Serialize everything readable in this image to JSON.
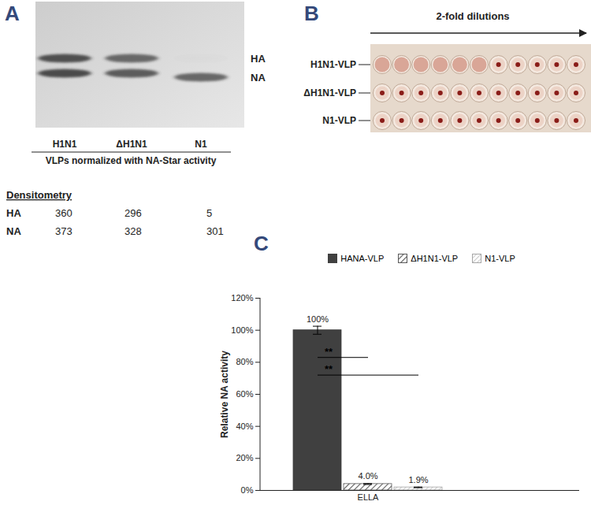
{
  "panel_a": {
    "label": "A",
    "bands": [
      "HA",
      "NA"
    ],
    "lanes": [
      "H1N1",
      "ΔH1N1",
      "N1"
    ],
    "caption": "VLPs normalized with NA-Star activity",
    "densitometry": {
      "title": "Densitometry",
      "rows": [
        {
          "name": "HA",
          "values": [
            360,
            296,
            5
          ]
        },
        {
          "name": "NA",
          "values": [
            373,
            328,
            301
          ]
        }
      ]
    }
  },
  "panel_b": {
    "label": "B",
    "arrow_text": "2-fold dilutions",
    "rows": [
      {
        "name": "H1N1-VLP",
        "agglutination": [
          true,
          true,
          true,
          true,
          true,
          true,
          false,
          false,
          false,
          false,
          false
        ]
      },
      {
        "name": "ΔH1N1-VLP",
        "agglutination": [
          false,
          false,
          false,
          false,
          false,
          false,
          false,
          false,
          false,
          false,
          false
        ]
      },
      {
        "name": "N1-VLP",
        "agglutination": [
          false,
          false,
          false,
          false,
          false,
          false,
          false,
          false,
          false,
          false,
          false
        ]
      }
    ]
  },
  "chart_data": {
    "panel_label": "C",
    "type": "bar",
    "ylabel": "Relative NA activity",
    "categories": [
      "ELLA"
    ],
    "series": [
      {
        "name": "HANA-VLP",
        "color": "#404040",
        "values": [
          100
        ],
        "errors": [
          2.5
        ],
        "value_labels": [
          "100%"
        ]
      },
      {
        "name": "ΔH1N1-VLP",
        "color": "#5a5a5a",
        "values": [
          4.0
        ],
        "errors": [
          0.3
        ],
        "value_labels": [
          "4.0%"
        ]
      },
      {
        "name": "N1-VLP",
        "color": "#a6a6a6",
        "values": [
          1.9
        ],
        "errors": [
          0.2
        ],
        "value_labels": [
          "1.9%"
        ]
      }
    ],
    "ylim": [
      0,
      120
    ],
    "yticks": [
      {
        "value": 0,
        "label": "0%"
      },
      {
        "value": 20,
        "label": "20%"
      },
      {
        "value": 40,
        "label": "40%"
      },
      {
        "value": 60,
        "label": "60%"
      },
      {
        "value": 80,
        "label": "80%"
      },
      {
        "value": 100,
        "label": "100%"
      },
      {
        "value": 120,
        "label": "120%"
      }
    ],
    "data_labels": true,
    "legend": "top",
    "annotations": [
      {
        "text": "**",
        "from": "HANA-VLP",
        "to": "ΔH1N1-VLP",
        "y": 83
      },
      {
        "text": "**",
        "from": "HANA-VLP",
        "to": "N1-VLP",
        "y": 72
      }
    ]
  }
}
